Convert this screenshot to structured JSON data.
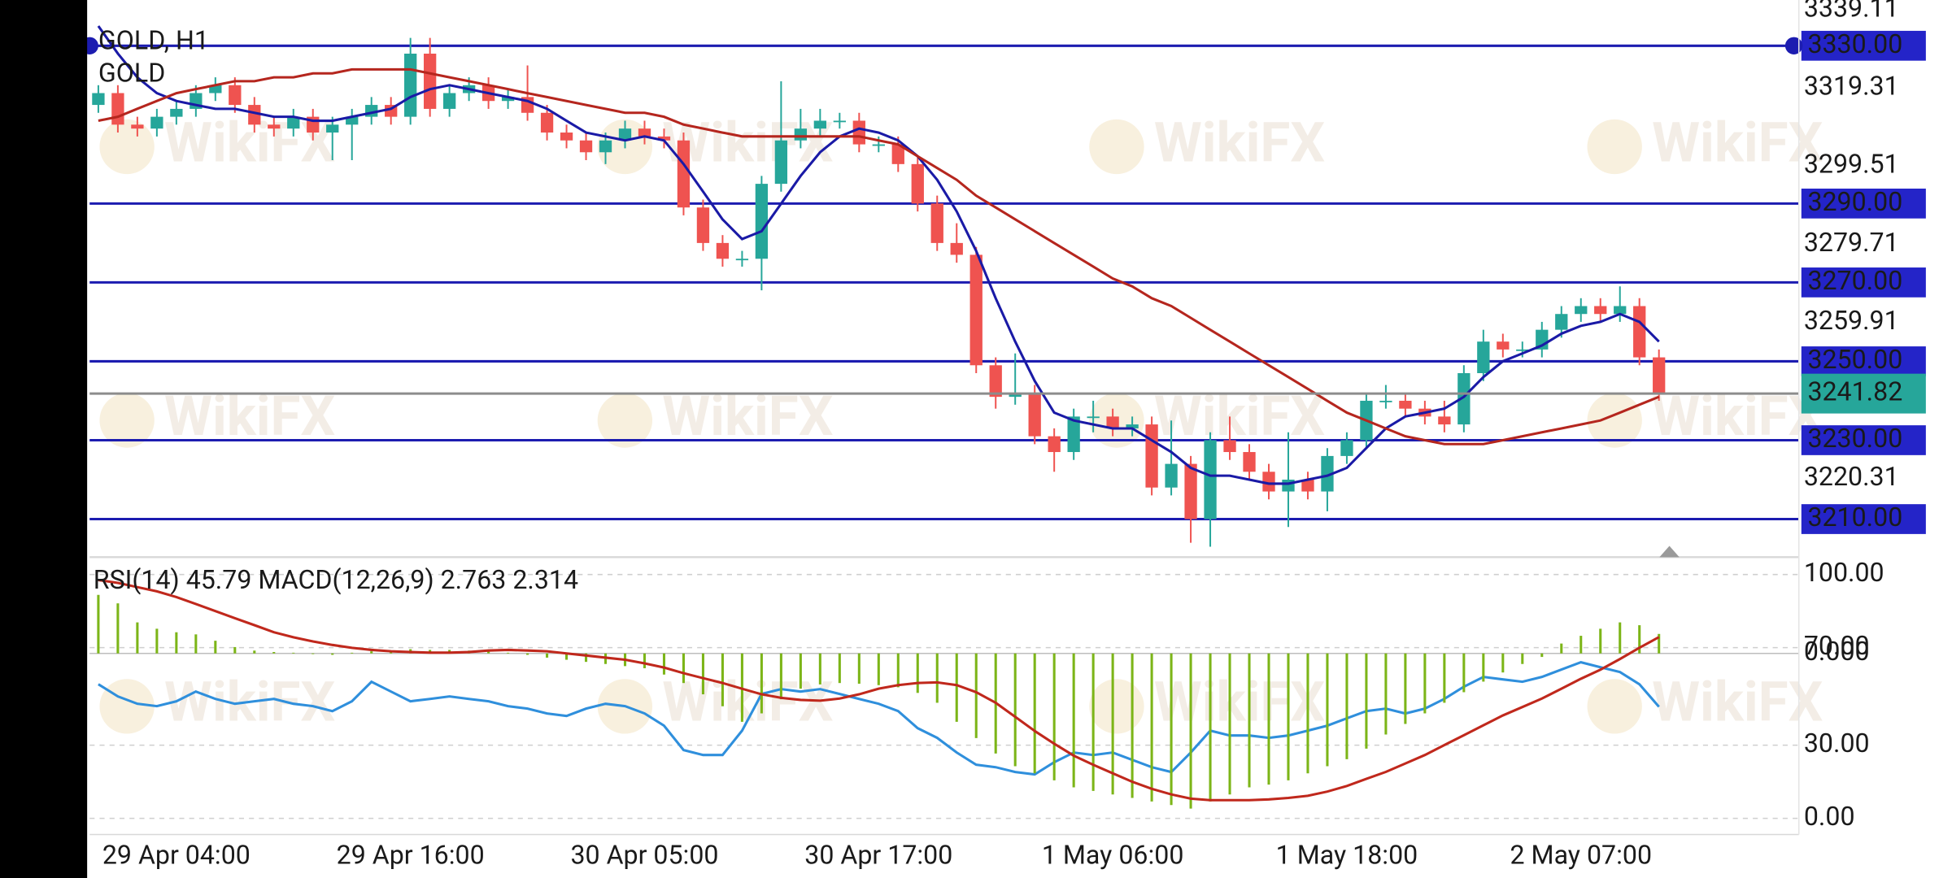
{
  "chart_data": [
    {
      "type": "candlestick",
      "title": "GOLD, H1",
      "subtitle": "GOLD",
      "watermark": "WikiFX",
      "categories": [
        null,
        null,
        null,
        null,
        "29 Apr 04:00",
        null,
        null,
        null,
        null,
        null,
        null,
        null,
        null,
        null,
        null,
        null,
        "29 Apr 16:00",
        null,
        null,
        null,
        null,
        null,
        null,
        null,
        null,
        null,
        null,
        null,
        "30 Apr 05:00",
        null,
        null,
        null,
        null,
        null,
        null,
        null,
        null,
        null,
        null,
        null,
        "30 Apr 17:00",
        null,
        null,
        null,
        null,
        null,
        null,
        null,
        null,
        null,
        null,
        null,
        "1 May 06:00",
        null,
        null,
        null,
        null,
        null,
        null,
        null,
        null,
        null,
        null,
        null,
        "1 May 18:00",
        null,
        null,
        null,
        null,
        null,
        null,
        null,
        null,
        null,
        null,
        null,
        "2 May 07:00",
        null,
        null,
        null,
        null
      ],
      "open": [
        3315,
        3318,
        3310,
        3309,
        3312,
        3314,
        3318,
        3320,
        3315,
        3310,
        3309,
        3312,
        3308,
        3310,
        3312,
        3315,
        3312,
        3328,
        3314,
        3318,
        3320,
        3316,
        3317,
        3313,
        3308,
        3306,
        3303,
        3306,
        3309,
        3307,
        3306,
        3289,
        3280,
        3276,
        3276,
        3295,
        3306,
        3309,
        3311,
        3311,
        3305,
        3305,
        3300,
        3290,
        3280,
        3277,
        3249,
        3241,
        3242,
        3231,
        3227,
        3236,
        3236,
        3233,
        3234,
        3218,
        3224,
        3210,
        3230,
        3227,
        3222,
        3217,
        3220,
        3217,
        3226,
        3230,
        3240,
        3240,
        3238,
        3236,
        3234,
        3247,
        3255,
        3253,
        3253,
        3258,
        3262,
        3264,
        3262,
        3264,
        3251
      ],
      "high": [
        3320,
        3320,
        3312,
        3314,
        3316,
        3320,
        3322,
        3322,
        3317,
        3312,
        3314,
        3314,
        3312,
        3314,
        3317,
        3317,
        3332,
        3332,
        3320,
        3322,
        3322,
        3319,
        3325,
        3315,
        3310,
        3308,
        3308,
        3311,
        3311,
        3309,
        3308,
        3291,
        3282,
        3278,
        3297,
        3321,
        3314,
        3314,
        3313,
        3313,
        3307,
        3307,
        3302,
        3292,
        3285,
        3279,
        3251,
        3252,
        3244,
        3233,
        3238,
        3240,
        3238,
        3236,
        3236,
        3235,
        3226,
        3232,
        3236,
        3229,
        3224,
        3232,
        3222,
        3228,
        3232,
        3242,
        3244,
        3242,
        3240,
        3240,
        3249,
        3258,
        3257,
        3255,
        3260,
        3264,
        3266,
        3266,
        3269,
        3266,
        3253
      ],
      "low": [
        3313,
        3308,
        3307,
        3307,
        3310,
        3312,
        3316,
        3313,
        3308,
        3307,
        3307,
        3306,
        3301,
        3301,
        3310,
        3310,
        3310,
        3312,
        3312,
        3316,
        3314,
        3314,
        3311,
        3306,
        3304,
        3301,
        3300,
        3304,
        3305,
        3304,
        3287,
        3278,
        3274,
        3274,
        3268,
        3293,
        3304,
        3307,
        3309,
        3303,
        3303,
        3298,
        3288,
        3278,
        3275,
        3247,
        3238,
        3239,
        3229,
        3222,
        3225,
        3232,
        3231,
        3231,
        3216,
        3216,
        3204,
        3203,
        3225,
        3220,
        3215,
        3208,
        3215,
        3212,
        3224,
        3228,
        3238,
        3236,
        3234,
        3232,
        3232,
        3245,
        3251,
        3251,
        3251,
        3256,
        3260,
        3260,
        3260,
        3249,
        3240
      ],
      "close": [
        3318,
        3310,
        3309,
        3312,
        3314,
        3318,
        3320,
        3315,
        3310,
        3309,
        3312,
        3308,
        3310,
        3312,
        3315,
        3312,
        3328,
        3314,
        3318,
        3320,
        3316,
        3317,
        3313,
        3308,
        3306,
        3303,
        3306,
        3309,
        3307,
        3306,
        3289,
        3280,
        3276,
        3276,
        3295,
        3306,
        3309,
        3311,
        3311,
        3305,
        3305,
        3300,
        3290,
        3280,
        3277,
        3249,
        3241,
        3242,
        3231,
        3227,
        3236,
        3236,
        3233,
        3234,
        3218,
        3224,
        3210,
        3230,
        3227,
        3222,
        3217,
        3220,
        3217,
        3226,
        3230,
        3240,
        3240,
        3238,
        3236,
        3234,
        3247,
        3255,
        3253,
        3253,
        3258,
        3262,
        3264,
        3262,
        3264,
        3251,
        3241.82
      ],
      "up_color": "#26a69a",
      "down_color": "#ef5350",
      "lines": [
        {
          "color": "#1a1aa6",
          "values": [
            3335,
            3328,
            3322,
            3318,
            3316,
            3315,
            3314,
            3314,
            3313,
            3312,
            3312,
            3311,
            3311,
            3312,
            3313,
            3314,
            3317,
            3319,
            3320,
            3319,
            3318,
            3317,
            3316,
            3314,
            3311,
            3308,
            3307,
            3306,
            3307,
            3306,
            3300,
            3293,
            3286,
            3281,
            3283,
            3290,
            3297,
            3303,
            3307,
            3309,
            3308,
            3306,
            3302,
            3296,
            3288,
            3278,
            3266,
            3255,
            3245,
            3237,
            3235,
            3234,
            3233,
            3233,
            3230,
            3227,
            3223,
            3221,
            3221,
            3220,
            3219,
            3219,
            3220,
            3221,
            3223,
            3228,
            3233,
            3236,
            3237,
            3238,
            3241,
            3246,
            3250,
            3252,
            3254,
            3257,
            3259,
            3260,
            3262,
            3260,
            3255
          ]
        },
        {
          "color": "#b5261e",
          "values": [
            3311,
            3312,
            3314,
            3316,
            3318,
            3319,
            3320,
            3321,
            3321,
            3322,
            3322,
            3323,
            3323,
            3324,
            3324,
            3324,
            3324,
            3323,
            3322,
            3321,
            3320,
            3319,
            3318,
            3317,
            3316,
            3315,
            3314,
            3313,
            3313,
            3312,
            3310,
            3309,
            3308,
            3307,
            3307,
            3307,
            3307,
            3307,
            3307,
            3307,
            3306,
            3305,
            3302,
            3299,
            3296,
            3292,
            3289,
            3286,
            3283,
            3280,
            3277,
            3274,
            3271,
            3269,
            3266,
            3264,
            3261,
            3258,
            3255,
            3252,
            3249,
            3246,
            3243,
            3240,
            3237,
            3235,
            3233,
            3231,
            3230,
            3229,
            3229,
            3229,
            3230,
            3231,
            3232,
            3233,
            3234,
            3235,
            3237,
            3239,
            3241
          ]
        }
      ],
      "levels": [
        {
          "value": 3330,
          "label": "3330.00"
        },
        {
          "value": 3290,
          "label": "3290.00"
        },
        {
          "value": 3270,
          "label": "3270.00"
        },
        {
          "value": 3250,
          "label": "3250.00"
        },
        {
          "value": 3230,
          "label": "3230.00"
        },
        {
          "value": 3210,
          "label": "3210.00"
        }
      ],
      "level_color": "#1c1cb0",
      "level_label_color": "#2424c8",
      "ylim": [
        3201.3,
        3341.6
      ],
      "yticks": [
        3339.11,
        3319.31,
        3299.51,
        3279.71,
        3259.91,
        3220.31
      ],
      "grid": false
    },
    {
      "type": "oscillator",
      "series": [
        {
          "name": "RSI(14)",
          "color": "#2f8fdc",
          "values": [
            55,
            50,
            47,
            46,
            48,
            52,
            49,
            47,
            48,
            49,
            47,
            46,
            44,
            48,
            56,
            52,
            48,
            49,
            50,
            49,
            48,
            46,
            45,
            43,
            42,
            45,
            47,
            46,
            43,
            38,
            28,
            26,
            26,
            36,
            51,
            53,
            52,
            53,
            51,
            49,
            47,
            44,
            37,
            33,
            27,
            22,
            21,
            19,
            18,
            23,
            27,
            26,
            27,
            24,
            21,
            19,
            27,
            36,
            34,
            34,
            33,
            34,
            36,
            38,
            41,
            44,
            45,
            43,
            45,
            49,
            54,
            58,
            57,
            56,
            58,
            61,
            64,
            62,
            60,
            55,
            45.79
          ]
        },
        {
          "name": "MACD(12,26,9)",
          "color": "#7cb518",
          "axis": "y2",
          "style": "histogram",
          "values": [
            8.3,
            7.1,
            4.4,
            3.5,
            3.0,
            2.7,
            1.8,
            0.9,
            0.4,
            0.2,
            0.1,
            -0.1,
            -0.2,
            0.1,
            0.3,
            0.3,
            0.6,
            0.5,
            0.5,
            0.4,
            0.3,
            0.1,
            -0.2,
            -0.6,
            -0.9,
            -1.2,
            -1.5,
            -1.8,
            -2.1,
            -3.0,
            -4.2,
            -5.8,
            -7.5,
            -9.7,
            -8.5,
            -6.5,
            -5.0,
            -4.4,
            -4.2,
            -4.3,
            -4.5,
            -4.8,
            -5.6,
            -7.0,
            -9.7,
            -12.0,
            -14.2,
            -16.0,
            -17.0,
            -18.0,
            -19.0,
            -19.5,
            -20.0,
            -20.5,
            -21.0,
            -21.5,
            -22.0,
            -21.0,
            -20.0,
            -19.0,
            -18.6,
            -18.0,
            -17.0,
            -16.0,
            -15.0,
            -13.5,
            -11.5,
            -10.0,
            -8.5,
            -7.0,
            -5.5,
            -4.0,
            -2.7,
            -1.5,
            -0.5,
            1.4,
            2.5,
            3.5,
            4.4,
            4.0,
            2.763
          ]
        },
        {
          "color": "#c0281c",
          "axis": "y2",
          "values": [
            10.4,
            10.0,
            9.4,
            8.8,
            8.0,
            7.0,
            6.0,
            5.0,
            4.0,
            3.0,
            2.3,
            1.7,
            1.2,
            0.8,
            0.5,
            0.3,
            0.2,
            0.1,
            0.1,
            0.2,
            0.4,
            0.5,
            0.4,
            0.3,
            0.0,
            -0.3,
            -0.6,
            -0.9,
            -1.4,
            -2.0,
            -2.8,
            -3.5,
            -4.2,
            -5.0,
            -5.8,
            -6.3,
            -6.6,
            -6.7,
            -6.4,
            -5.8,
            -5.0,
            -4.5,
            -4.2,
            -4.1,
            -4.5,
            -5.5,
            -7.0,
            -9.0,
            -11.0,
            -12.8,
            -14.5,
            -15.8,
            -17.0,
            -18.2,
            -19.2,
            -20.0,
            -20.6,
            -20.8,
            -20.8,
            -20.8,
            -20.7,
            -20.5,
            -20.2,
            -19.6,
            -18.8,
            -17.8,
            -16.8,
            -15.6,
            -14.4,
            -13.0,
            -11.6,
            -10.2,
            -8.8,
            -7.6,
            -6.4,
            -5.0,
            -3.6,
            -2.3,
            -0.8,
            0.8,
            2.314
          ]
        }
      ],
      "ylim": [
        -6.1,
        106.1
      ],
      "yticks": [
        {
          "value": 100,
          "label": "100.00"
        },
        {
          "value": 70,
          "label": "70.00"
        },
        {
          "value": 30,
          "label": "30.00"
        },
        {
          "value": 0,
          "label": "0.00"
        }
      ],
      "y2lim": [
        -25.5,
        13.3
      ],
      "y2ticks": [
        {
          "value": 0,
          "label": "0.000"
        }
      ],
      "grid": true
    }
  ]
}
